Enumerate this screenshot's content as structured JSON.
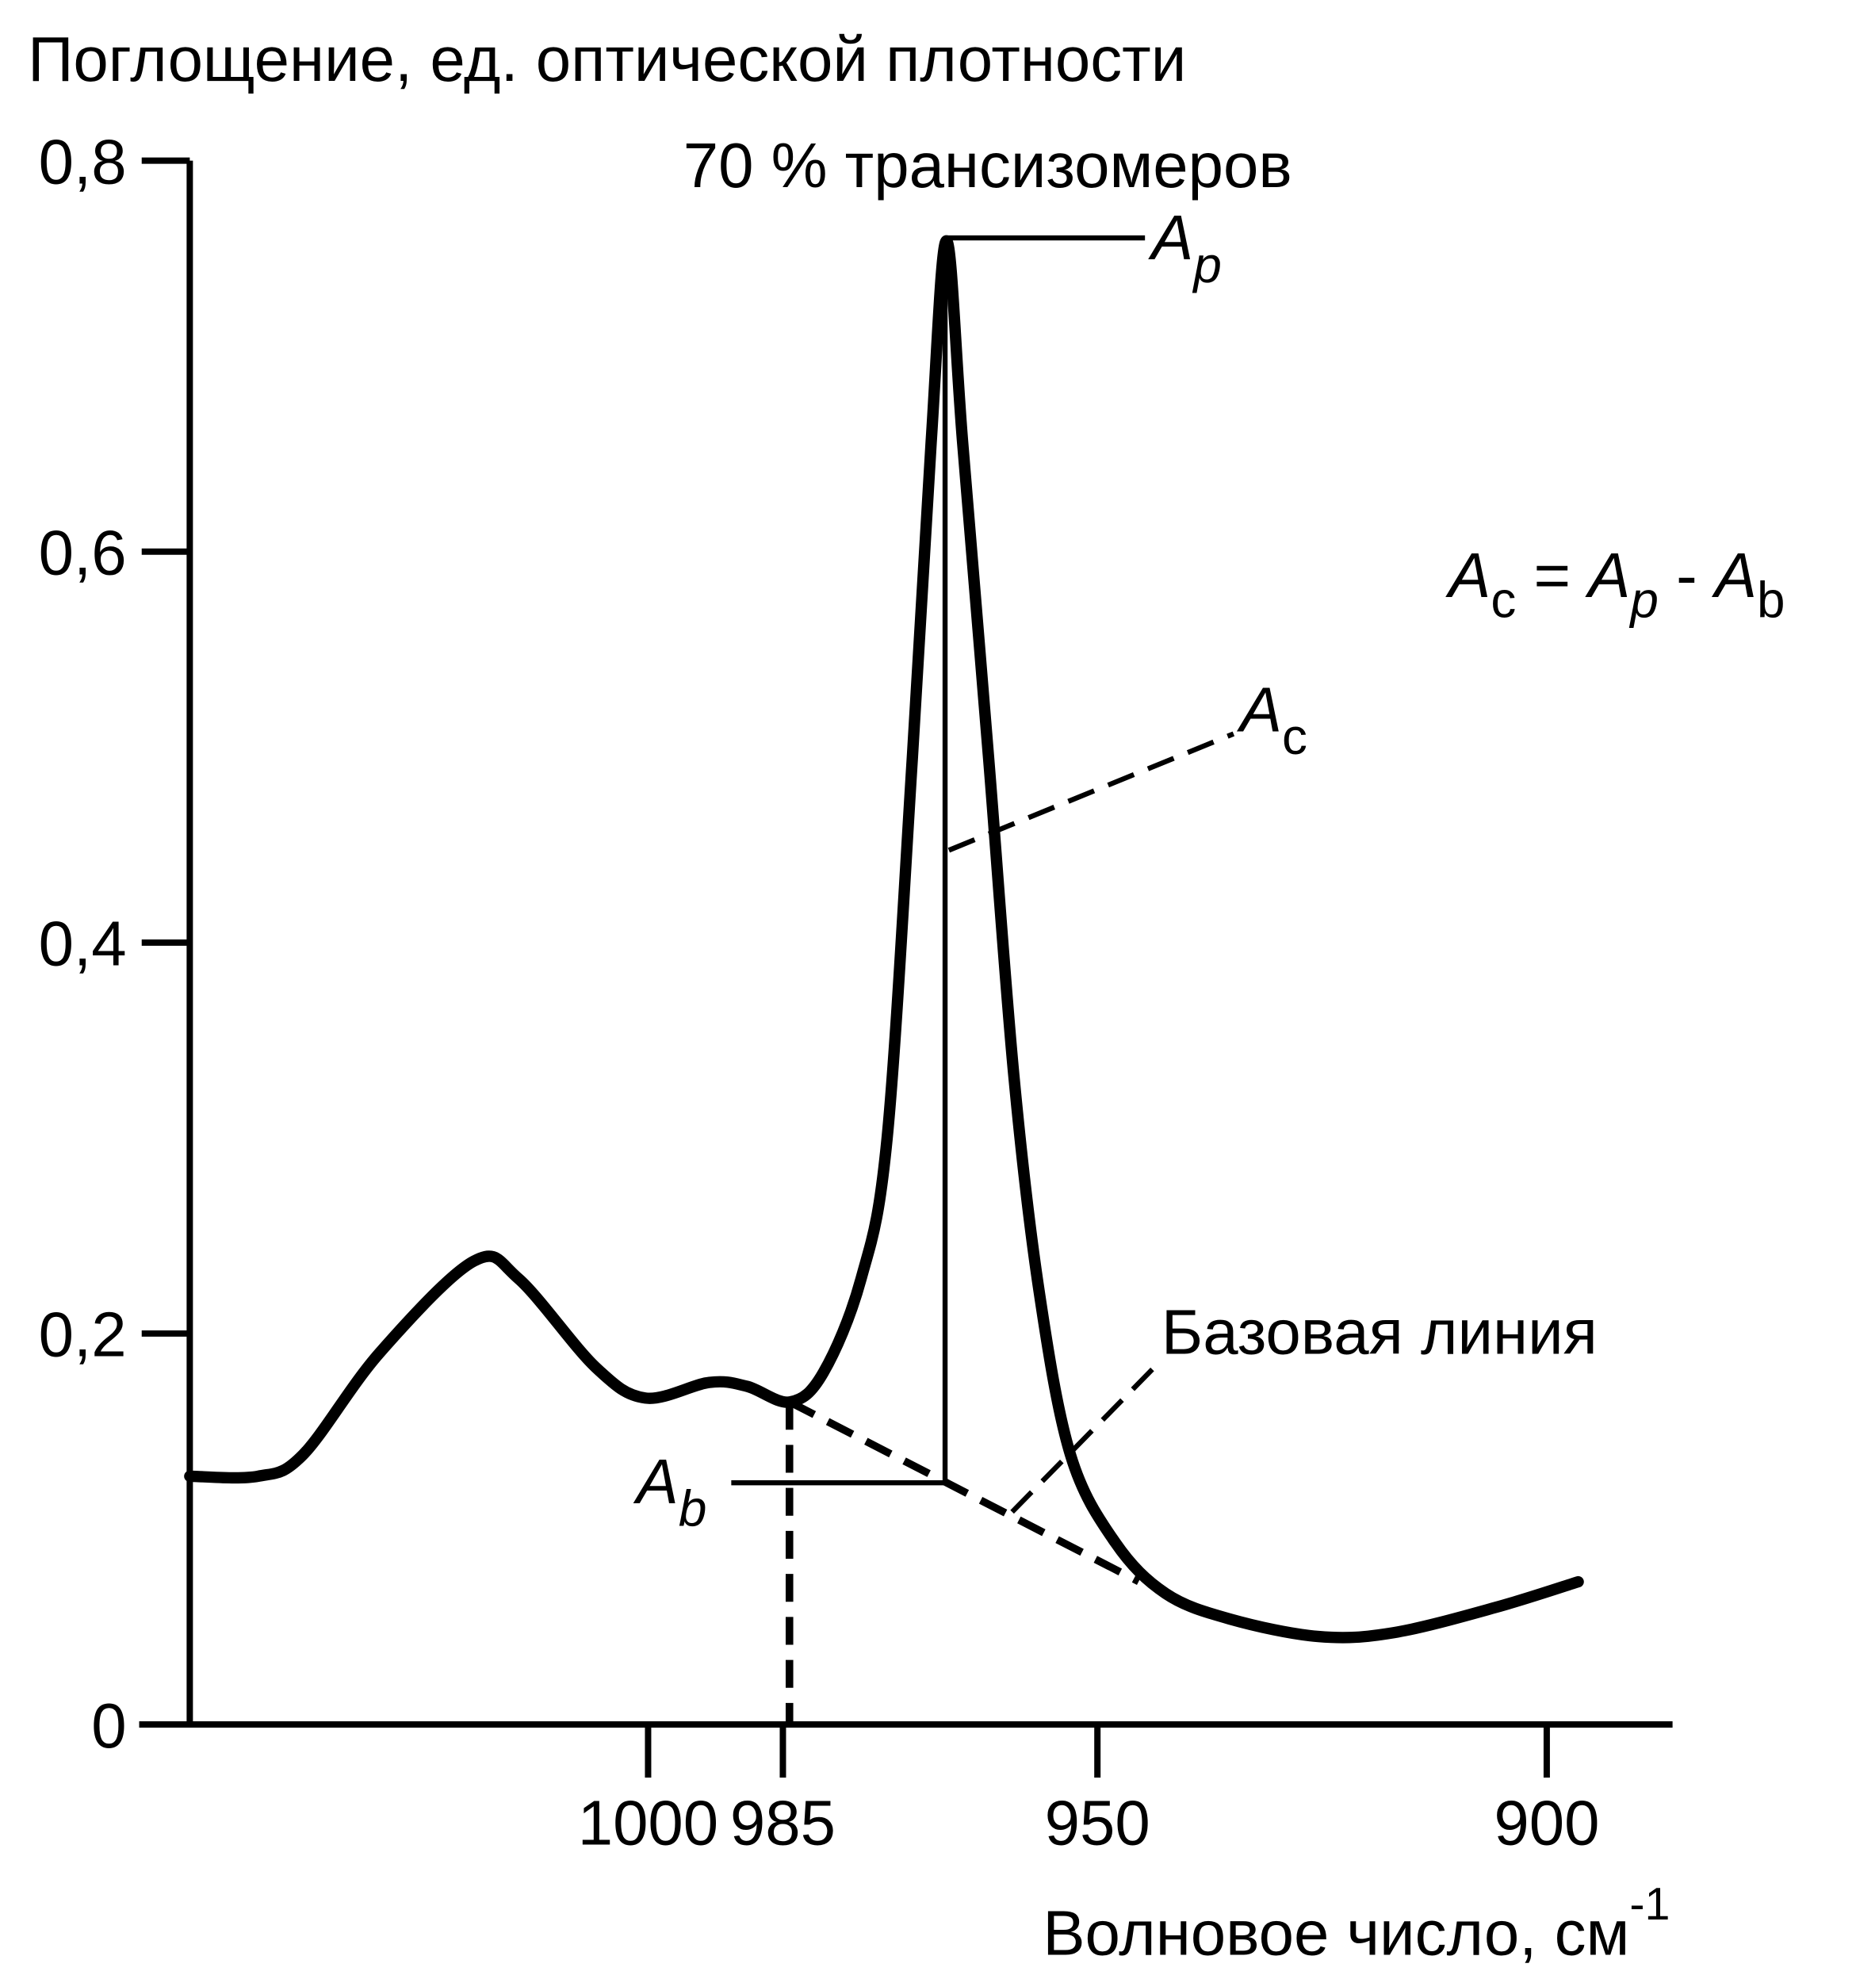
{
  "chart_data": {
    "type": "line",
    "title": "Поглощение, ед. оптической плотности",
    "subtitle": "70 % трансизомеров",
    "x_label": "Волновое число, см",
    "x_label_sup": "-1",
    "x": [
      1051,
      1043.4,
      1038.4,
      1029.9,
      1019.4,
      1014.4,
      1005.9,
      1000.3,
      993.2,
      989,
      984.2,
      980.5,
      976.3,
      973.4,
      970.6,
      968.5,
      966.8,
      965,
      962.1,
      959.3,
      956.5,
      953,
      948,
      942.4,
      935.3,
      925.4,
      917,
      905.6,
      896.5
    ],
    "values": [
      0.127,
      0.127,
      0.138,
      0.19,
      0.237,
      0.228,
      0.183,
      0.167,
      0.175,
      0.173,
      0.165,
      0.18,
      0.228,
      0.3,
      0.494,
      0.656,
      0.759,
      0.656,
      0.494,
      0.332,
      0.222,
      0.138,
      0.093,
      0.067,
      0.054,
      0.045,
      0.047,
      0.06,
      0.073
    ],
    "color": "#000000",
    "xlim": [
      1051,
      886
    ],
    "xticks": [
      1000,
      985,
      950,
      900
    ],
    "ylim": [
      0,
      0.8
    ],
    "yticks": [
      0,
      {
        "value": 0.2,
        "label": "0,2"
      },
      {
        "value": 0.4,
        "label": "0,4"
      },
      {
        "value": 0.6,
        "label": "0,6"
      },
      {
        "value": 0.8,
        "label": "0,8"
      }
    ],
    "grid": false,
    "annotations": [
      {
        "text": "A",
        "sub": "p"
      },
      {
        "text": "A",
        "sub": "c"
      },
      {
        "text": "A",
        "sub": "b"
      },
      {
        "text": "Базовая линия"
      }
    ],
    "formula": [
      {
        "text": "A",
        "sub": "c"
      },
      {
        "text": "="
      },
      {
        "text": "A",
        "sub": "p"
      },
      {
        "text": "-"
      },
      {
        "text": "A",
        "sub": "b"
      }
    ]
  }
}
